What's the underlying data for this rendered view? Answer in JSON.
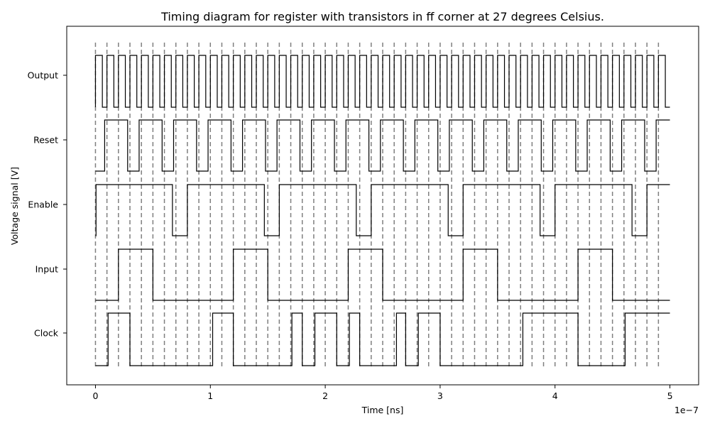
{
  "chart_data": {
    "type": "line",
    "title": "Timing diagram for register with transistors in ff corner at 27 degrees Celsius.",
    "xlabel": "Time [ns]",
    "ylabel": "Voltage signal [V]",
    "x_offset_label": "1e−7",
    "xlim": [
      -0.25,
      5.25
    ],
    "x_ticks": [
      0,
      1,
      2,
      3,
      4,
      5
    ],
    "x_tick_labels": [
      "0",
      "1",
      "2",
      "3",
      "4",
      "5"
    ],
    "x_unit_multiplier": 1e-07,
    "grid": "dashed vertical markers every 0.1 (×1e−7)",
    "clock_edges": [
      0,
      0.1,
      0.2,
      0.3,
      0.4,
      0.5,
      0.6,
      0.7,
      0.8,
      0.9,
      1.0,
      1.1,
      1.2,
      1.3,
      1.4,
      1.5,
      1.6,
      1.7,
      1.8,
      1.9,
      2.0,
      2.1,
      2.2,
      2.3,
      2.4,
      2.5,
      2.6,
      2.7,
      2.8,
      2.9,
      3.0,
      3.1,
      3.2,
      3.3,
      3.4,
      3.5,
      3.6,
      3.7,
      3.8,
      3.9,
      4.0,
      4.1,
      4.2,
      4.3,
      4.4,
      4.5,
      4.6,
      4.7,
      4.8,
      4.9
    ],
    "series": [
      {
        "name": "Clock",
        "level_low": 0.0,
        "level_high": 0.8,
        "transitions": [
          [
            0,
            0
          ],
          [
            0.11,
            1
          ],
          [
            0.3,
            0
          ],
          [
            1.02,
            1
          ],
          [
            1.2,
            0
          ],
          [
            1.71,
            1
          ],
          [
            1.8,
            0
          ],
          [
            1.91,
            1
          ],
          [
            2.1,
            0
          ],
          [
            2.21,
            1
          ],
          [
            2.3,
            0
          ],
          [
            2.62,
            1
          ],
          [
            2.7,
            0
          ],
          [
            2.81,
            1
          ],
          [
            3.0,
            0
          ],
          [
            3.72,
            1
          ],
          [
            4.2,
            0
          ],
          [
            4.61,
            1
          ],
          [
            5.0,
            1
          ]
        ]
      },
      {
        "name": "Input",
        "level_low": 0.0,
        "level_high": 0.8,
        "transitions": [
          [
            0,
            0
          ],
          [
            0.2,
            1
          ],
          [
            0.5,
            0
          ],
          [
            1.2,
            1
          ],
          [
            1.5,
            0
          ],
          [
            2.2,
            1
          ],
          [
            2.5,
            0
          ],
          [
            3.2,
            1
          ],
          [
            3.5,
            0
          ],
          [
            4.2,
            1
          ],
          [
            4.5,
            0
          ],
          [
            5.0,
            0
          ]
        ]
      },
      {
        "name": "Enable",
        "level_low": 0.0,
        "level_high": 0.8,
        "transitions": [
          [
            0,
            0
          ],
          [
            0.005,
            1
          ],
          [
            0.67,
            0
          ],
          [
            0.8,
            1
          ],
          [
            1.47,
            0
          ],
          [
            1.6,
            1
          ],
          [
            2.27,
            0
          ],
          [
            2.4,
            1
          ],
          [
            3.07,
            0
          ],
          [
            3.2,
            1
          ],
          [
            3.87,
            0
          ],
          [
            4.0,
            1
          ],
          [
            4.67,
            0
          ],
          [
            4.8,
            1
          ],
          [
            5.0,
            1
          ]
        ]
      },
      {
        "name": "Reset",
        "level_low": 0.0,
        "level_high": 0.8,
        "transitions": [
          [
            0,
            0
          ],
          [
            0.08,
            1
          ],
          [
            0.28,
            0
          ],
          [
            0.38,
            1
          ],
          [
            0.58,
            0
          ],
          [
            0.68,
            1
          ],
          [
            0.88,
            0
          ],
          [
            0.98,
            1
          ],
          [
            1.18,
            0
          ],
          [
            1.28,
            1
          ],
          [
            1.48,
            0
          ],
          [
            1.58,
            1
          ],
          [
            1.78,
            0
          ],
          [
            1.88,
            1
          ],
          [
            2.08,
            0
          ],
          [
            2.18,
            1
          ],
          [
            2.38,
            0
          ],
          [
            2.48,
            1
          ],
          [
            2.68,
            0
          ],
          [
            2.78,
            1
          ],
          [
            2.98,
            0
          ],
          [
            3.08,
            1
          ],
          [
            3.28,
            0
          ],
          [
            3.38,
            1
          ],
          [
            3.58,
            0
          ],
          [
            3.68,
            1
          ],
          [
            3.88,
            0
          ],
          [
            3.98,
            1
          ],
          [
            4.18,
            0
          ],
          [
            4.28,
            1
          ],
          [
            4.48,
            0
          ],
          [
            4.58,
            1
          ],
          [
            4.78,
            0
          ],
          [
            4.88,
            1
          ],
          [
            5.0,
            1
          ]
        ]
      },
      {
        "name": "Output",
        "level_low": 0.0,
        "level_high": 0.8,
        "transitions": [
          [
            0,
            0
          ],
          [
            0.0,
            1
          ],
          [
            0.06,
            0
          ],
          [
            0.1,
            1
          ],
          [
            0.16,
            0
          ],
          [
            0.2,
            1
          ],
          [
            0.26,
            0
          ],
          [
            0.3,
            1
          ],
          [
            0.36,
            0
          ],
          [
            0.4,
            1
          ],
          [
            0.46,
            0
          ],
          [
            0.5,
            1
          ],
          [
            0.56,
            0
          ],
          [
            0.6,
            1
          ],
          [
            0.66,
            0
          ],
          [
            0.7,
            1
          ],
          [
            0.76,
            0
          ],
          [
            0.8,
            1
          ],
          [
            0.86,
            0
          ],
          [
            0.9,
            1
          ],
          [
            0.96,
            0
          ],
          [
            1.0,
            1
          ],
          [
            1.06,
            0
          ],
          [
            1.1,
            1
          ],
          [
            1.16,
            0
          ],
          [
            1.2,
            1
          ],
          [
            1.26,
            0
          ],
          [
            1.3,
            1
          ],
          [
            1.36,
            0
          ],
          [
            1.4,
            1
          ],
          [
            1.46,
            0
          ],
          [
            1.5,
            1
          ],
          [
            1.56,
            0
          ],
          [
            1.6,
            1
          ],
          [
            1.66,
            0
          ],
          [
            1.7,
            1
          ],
          [
            1.76,
            0
          ],
          [
            1.8,
            1
          ],
          [
            1.86,
            0
          ],
          [
            1.9,
            1
          ],
          [
            1.96,
            0
          ],
          [
            2.0,
            1
          ],
          [
            2.06,
            0
          ],
          [
            2.1,
            1
          ],
          [
            2.16,
            0
          ],
          [
            2.2,
            1
          ],
          [
            2.26,
            0
          ],
          [
            2.3,
            1
          ],
          [
            2.36,
            0
          ],
          [
            2.4,
            1
          ],
          [
            2.46,
            0
          ],
          [
            2.5,
            1
          ],
          [
            2.56,
            0
          ],
          [
            2.6,
            1
          ],
          [
            2.66,
            0
          ],
          [
            2.7,
            1
          ],
          [
            2.76,
            0
          ],
          [
            2.8,
            1
          ],
          [
            2.86,
            0
          ],
          [
            2.9,
            1
          ],
          [
            2.96,
            0
          ],
          [
            3.0,
            1
          ],
          [
            3.06,
            0
          ],
          [
            3.1,
            1
          ],
          [
            3.16,
            0
          ],
          [
            3.2,
            1
          ],
          [
            3.26,
            0
          ],
          [
            3.3,
            1
          ],
          [
            3.36,
            0
          ],
          [
            3.4,
            1
          ],
          [
            3.46,
            0
          ],
          [
            3.5,
            1
          ],
          [
            3.56,
            0
          ],
          [
            3.6,
            1
          ],
          [
            3.66,
            0
          ],
          [
            3.7,
            1
          ],
          [
            3.76,
            0
          ],
          [
            3.8,
            1
          ],
          [
            3.86,
            0
          ],
          [
            3.9,
            1
          ],
          [
            3.96,
            0
          ],
          [
            4.0,
            1
          ],
          [
            4.06,
            0
          ],
          [
            4.1,
            1
          ],
          [
            4.16,
            0
          ],
          [
            4.2,
            1
          ],
          [
            4.26,
            0
          ],
          [
            4.3,
            1
          ],
          [
            4.36,
            0
          ],
          [
            4.4,
            1
          ],
          [
            4.46,
            0
          ],
          [
            4.5,
            1
          ],
          [
            4.56,
            0
          ],
          [
            4.6,
            1
          ],
          [
            4.66,
            0
          ],
          [
            4.7,
            1
          ],
          [
            4.76,
            0
          ],
          [
            4.8,
            1
          ],
          [
            4.86,
            0
          ],
          [
            4.9,
            1
          ],
          [
            4.96,
            0
          ],
          [
            5.0,
            0
          ]
        ]
      }
    ],
    "y_tick_labels": [
      "Clock",
      "Input",
      "Enable",
      "Reset",
      "Output"
    ],
    "colors": {
      "signal": "#000000",
      "marker": "#7f7f7f",
      "axes": "#000000"
    }
  }
}
